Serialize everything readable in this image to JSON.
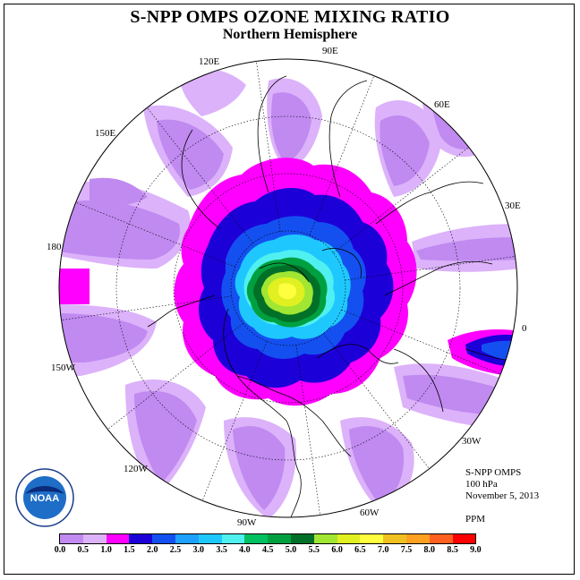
{
  "header": {
    "title": "S-NPP OMPS OZONE MIXING RATIO",
    "subtitle": "Northern Hemisphere"
  },
  "longitude_labels": [
    "90E",
    "60E",
    "30E",
    "0",
    "30W",
    "60W",
    "90W",
    "120W",
    "150W",
    "180",
    "150E",
    "120E"
  ],
  "info": {
    "instrument": "S-NPP OMPS",
    "level": "100 hPa",
    "date": "November 5, 2013",
    "units": "PPM"
  },
  "logo": {
    "text": "NOAA",
    "name": "noaa-logo"
  },
  "colorbar": {
    "ticks": [
      "0.0",
      "0.5",
      "1.0",
      "1.5",
      "2.0",
      "2.5",
      "3.0",
      "3.5",
      "4.0",
      "4.5",
      "5.0",
      "5.5",
      "6.0",
      "6.5",
      "7.0",
      "7.5",
      "8.0",
      "8.5",
      "9.0"
    ],
    "colors": [
      "#c08af0",
      "#dcb2fa",
      "#ff00ff",
      "#1c00d8",
      "#1450f0",
      "#1ea0ff",
      "#1ec8ff",
      "#50f0f0",
      "#00c060",
      "#00a040",
      "#007028",
      "#a0e632",
      "#e0f020",
      "#ffff40",
      "#f0c020",
      "#ffa020",
      "#ff6020",
      "#ff0000",
      "#8c5a32"
    ]
  }
}
